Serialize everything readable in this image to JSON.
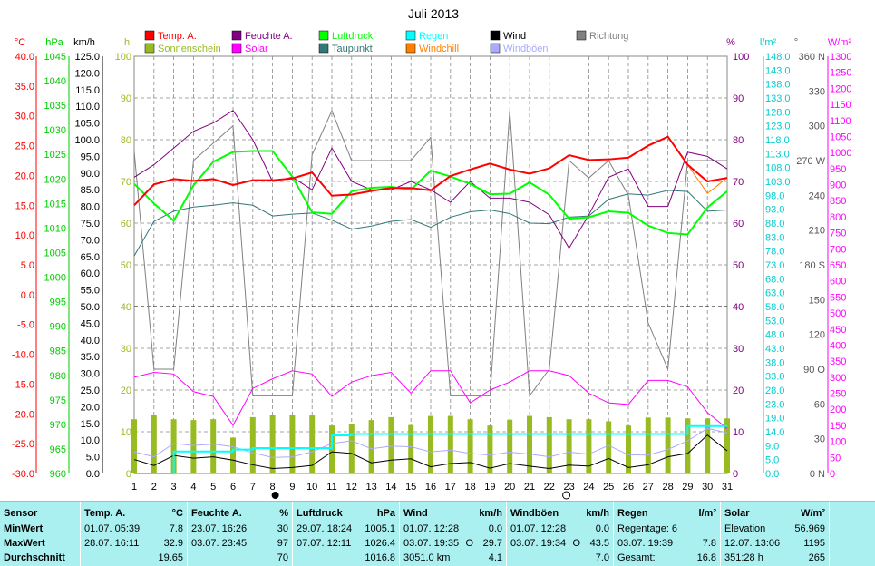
{
  "chart_data": {
    "type": "line",
    "title": "Juli 2013",
    "x": [
      1,
      2,
      3,
      4,
      5,
      6,
      7,
      8,
      9,
      10,
      11,
      12,
      13,
      14,
      15,
      16,
      17,
      18,
      19,
      20,
      21,
      22,
      23,
      24,
      25,
      26,
      27,
      28,
      29,
      30,
      31
    ],
    "axes": {
      "temp": {
        "unit": "°C",
        "range": [
          -30,
          40
        ],
        "ticks": [
          "40.0",
          "35.0",
          "30.0",
          "25.0",
          "20.0",
          "15.0",
          "10.0",
          "5.0",
          "0.0",
          "-5.0",
          "-10.0",
          "-15.0",
          "-20.0",
          "-25.0",
          "-30.0"
        ]
      },
      "pressure": {
        "unit": "hPa",
        "range": [
          960,
          1045
        ],
        "ticks": [
          "1045",
          "1040",
          "1035",
          "1030",
          "1025",
          "1020",
          "1015",
          "1010",
          "1005",
          "1000",
          "995",
          "990",
          "985",
          "980",
          "975",
          "970",
          "965",
          "960"
        ]
      },
      "wind": {
        "unit": "km/h",
        "range": [
          0,
          125
        ],
        "ticks": [
          "125.0",
          "120.0",
          "115.0",
          "110.0",
          "105.0",
          "100.0",
          "95.0",
          "90.0",
          "85.0",
          "80.0",
          "75.0",
          "70.0",
          "65.0",
          "60.0",
          "55.0",
          "50.0",
          "45.0",
          "40.0",
          "35.0",
          "30.0",
          "25.0",
          "20.0",
          "15.0",
          "10.0",
          "5.0",
          "0.0"
        ]
      },
      "sun": {
        "unit": "h",
        "range": [
          0,
          100
        ],
        "ticks": [
          "100",
          "90",
          "80",
          "70",
          "60",
          "50",
          "40",
          "30",
          "20",
          "10",
          "0"
        ]
      },
      "humidity": {
        "unit": "%",
        "range": [
          0,
          100
        ],
        "ticks": [
          "100",
          "90",
          "80",
          "70",
          "60",
          "50",
          "40",
          "30",
          "20",
          "10",
          "0"
        ]
      },
      "rain": {
        "unit": "l/m²",
        "range": [
          0,
          148
        ],
        "ticks": [
          "148.0",
          "143.0",
          "138.0",
          "133.0",
          "128.0",
          "123.0",
          "118.0",
          "113.0",
          "108.0",
          "103.0",
          "98.0",
          "93.0",
          "88.0",
          "83.0",
          "78.0",
          "73.0",
          "68.0",
          "63.0",
          "58.0",
          "53.0",
          "48.0",
          "43.0",
          "38.0",
          "33.0",
          "28.0",
          "23.0",
          "19.0",
          "14.0",
          "9.0",
          "5.0",
          "0.0"
        ]
      },
      "direction": {
        "unit": "°",
        "range": [
          0,
          360
        ],
        "ticks": [
          "360 N",
          "330",
          "300",
          "270 W",
          "240",
          "210",
          "180 S",
          "150",
          "120",
          "90 O",
          "60",
          "30",
          "0 N"
        ]
      },
      "solar": {
        "unit": "W/m²",
        "range": [
          0,
          1300
        ],
        "ticks": [
          "1300",
          "1250",
          "1200",
          "1150",
          "1100",
          "1050",
          "1000",
          "950",
          "900",
          "850",
          "800",
          "750",
          "700",
          "650",
          "600",
          "550",
          "500",
          "450",
          "400",
          "350",
          "300",
          "250",
          "200",
          "150",
          "100",
          "50",
          "0"
        ]
      }
    },
    "legend": [
      {
        "name": "Temp. A.",
        "color": "#ff0000"
      },
      {
        "name": "Feuchte A.",
        "color": "#800080"
      },
      {
        "name": "Luftdruck",
        "color": "#00ff00"
      },
      {
        "name": "Regen",
        "color": "#00ffff"
      },
      {
        "name": "Wind",
        "color": "#000000"
      },
      {
        "name": "Richtung",
        "color": "#808080"
      },
      {
        "name": "Sonnenschein",
        "color": "#99bb22"
      },
      {
        "name": "Solar",
        "color": "#ff00ff"
      },
      {
        "name": "Taupunkt",
        "color": "#337777"
      },
      {
        "name": "Windchill",
        "color": "#ff8000"
      },
      {
        "name": "Windböen",
        "color": "#aaaaff"
      }
    ],
    "series": [
      {
        "name": "Temp. A.",
        "axis": "temp",
        "color": "#ff0000",
        "width": 2,
        "values": [
          15.0,
          18.5,
          19.4,
          19.1,
          19.4,
          18.4,
          19.2,
          19.2,
          19.5,
          20.5,
          16.6,
          16.8,
          17.4,
          17.9,
          17.9,
          17.5,
          19.9,
          21.0,
          22.0,
          21.0,
          20.3,
          21.2,
          23.4,
          22.6,
          22.7,
          23.0,
          25.0,
          26.5,
          21.8,
          19.0,
          19.6
        ]
      },
      {
        "name": "Windchill",
        "axis": "temp",
        "color": "#ff8000",
        "width": 1,
        "values": [
          15.0,
          18.5,
          19.4,
          19.1,
          19.4,
          18.4,
          19.2,
          19.2,
          19.5,
          20.5,
          16.6,
          16.8,
          17.4,
          17.9,
          17.9,
          17.5,
          19.9,
          21.0,
          22.0,
          21.0,
          20.3,
          21.2,
          23.4,
          22.6,
          22.7,
          23.0,
          25.0,
          26.5,
          21.8,
          17.0,
          19.6
        ]
      },
      {
        "name": "Taupunkt",
        "axis": "temp",
        "color": "#337777",
        "width": 1,
        "values": [
          6.5,
          12.3,
          14.0,
          14.7,
          15.0,
          15.4,
          15.0,
          13.2,
          13.5,
          13.7,
          12.5,
          11.0,
          11.5,
          12.3,
          12.6,
          11.3,
          13.0,
          13.9,
          14.2,
          13.6,
          12.0,
          11.9,
          13.0,
          13.2,
          16.0,
          16.9,
          16.7,
          17.5,
          17.3,
          14.0,
          14.2
        ]
      },
      {
        "name": "Luftdruck",
        "axis": "pressure",
        "color": "#00ff00",
        "width": 2,
        "values": [
          1019.0,
          1015.0,
          1011.5,
          1018.7,
          1023.5,
          1025.5,
          1025.7,
          1025.7,
          1020.5,
          1013.2,
          1012.9,
          1017.5,
          1018.2,
          1018.4,
          1017.8,
          1021.7,
          1020.5,
          1019.0,
          1016.9,
          1017.0,
          1019.3,
          1016.8,
          1011.9,
          1012.2,
          1013.4,
          1013.1,
          1010.5,
          1009.0,
          1008.7,
          1014.2,
          1017.5
        ]
      },
      {
        "name": "Feuchte A.",
        "axis": "humidity",
        "color": "#800080",
        "width": 1,
        "values": [
          71.0,
          74.0,
          78.0,
          82.0,
          84.0,
          87.0,
          80.0,
          70.0,
          71.0,
          68.0,
          78.0,
          70.0,
          68.0,
          68.0,
          70.0,
          68.0,
          65.0,
          70.0,
          66.0,
          66.0,
          65.0,
          62.0,
          54.0,
          62.0,
          71.0,
          73.0,
          64.0,
          64.0,
          77.0,
          76.0,
          73.0
        ]
      },
      {
        "name": "Richtung",
        "axis": "direction",
        "color": "#808080",
        "width": 1,
        "values": [
          278.0,
          90.0,
          90.0,
          270.0,
          285.0,
          300.0,
          67.0,
          67.0,
          67.0,
          275.0,
          313.0,
          270.0,
          270.0,
          270.0,
          270.0,
          290.0,
          67.0,
          67.0,
          67.0,
          313.0,
          67.0,
          90.0,
          270.0,
          255.0,
          270.0,
          240.0,
          130.0,
          90.0,
          270.0,
          270.0,
          270.0
        ]
      },
      {
        "name": "Solar",
        "axis": "solar",
        "color": "#ff00ff",
        "width": 1,
        "values": [
          300.0,
          315.0,
          310.0,
          255.0,
          240.0,
          150.0,
          265.0,
          295.0,
          320.0,
          310.0,
          240.0,
          285.0,
          305.0,
          315.0,
          250.0,
          320.0,
          320.0,
          220.0,
          260.0,
          285.0,
          320.0,
          320.0,
          305.0,
          250.0,
          220.0,
          215.0,
          290.0,
          290.0,
          270.0,
          190.0,
          140.0
        ]
      },
      {
        "name": "Wind",
        "axis": "wind",
        "color": "#000000",
        "width": 1,
        "values": [
          4.2,
          2.4,
          5.4,
          4.6,
          5.0,
          4.0,
          2.6,
          1.5,
          1.8,
          2.4,
          6.5,
          6.0,
          3.2,
          4.0,
          4.4,
          2.0,
          3.0,
          3.3,
          1.6,
          3.0,
          2.2,
          1.5,
          2.5,
          2.2,
          4.5,
          1.8,
          2.6,
          5.0,
          6.0,
          11.5,
          6.8
        ]
      },
      {
        "name": "Windböen",
        "axis": "wind",
        "color": "#aaaaff",
        "width": 1,
        "values": [
          6.5,
          5.0,
          9.0,
          8.4,
          8.8,
          8.0,
          6.2,
          4.8,
          5.0,
          6.5,
          9.0,
          9.8,
          7.4,
          8.2,
          8.0,
          6.5,
          7.0,
          6.0,
          5.5,
          6.4,
          5.8,
          5.0,
          6.4,
          5.8,
          8.4,
          5.6,
          5.5,
          7.2,
          9.8,
          13.5,
          12.2
        ]
      },
      {
        "name": "Regen",
        "axis": "rain",
        "color": "#00ffff",
        "width": 2,
        "step": true,
        "values": [
          0.0,
          0.0,
          7.8,
          7.8,
          7.8,
          8.5,
          9.0,
          9.0,
          9.0,
          9.0,
          13.5,
          14.0,
          14.0,
          14.0,
          14.0,
          14.0,
          14.0,
          14.0,
          14.0,
          14.0,
          14.0,
          14.0,
          14.0,
          14.0,
          14.0,
          14.0,
          14.0,
          14.0,
          16.8,
          16.8,
          16.8
        ]
      }
    ],
    "bars": {
      "name": "Sonnenschein",
      "axis": "sun",
      "color": "#99bb22",
      "values": [
        13.0,
        14.0,
        13.0,
        12.8,
        13.0,
        8.6,
        13.5,
        14.0,
        14.0,
        13.9,
        11.5,
        11.8,
        12.8,
        13.5,
        11.6,
        13.8,
        13.8,
        13.0,
        11.5,
        12.9,
        13.8,
        13.5,
        13.0,
        13.0,
        12.5,
        11.5,
        13.4,
        13.4,
        13.2,
        13.2,
        13.2
      ]
    },
    "markers": {
      "full_moon": 8,
      "new_moon": 23
    }
  },
  "stats": {
    "headers": [
      "Sensor",
      "Temp. A.",
      "°C",
      "Feuchte A.",
      "%",
      "Luftdruck",
      "hPa",
      "Wind",
      "km/h",
      "Windböen",
      "km/h",
      "Regen",
      "l/m²",
      "Solar",
      "W/m²"
    ],
    "row_labels": [
      "MinWert",
      "MaxWert",
      "Durchschnitt"
    ],
    "temp": {
      "min_time": "01.07.  05:39",
      "min": "7.8",
      "max_time": "28.07.  16:11",
      "max": "32.9",
      "avg": "19.65"
    },
    "humidity": {
      "min_time": "23.07.  16:26",
      "min": "30",
      "max_time": "03.07.  23:45",
      "max": "97",
      "avg": "70"
    },
    "pressure": {
      "min_time": "29.07.  18:24",
      "min": "1005.1",
      "max_time": "07.07.  12:11",
      "max": "1026.4",
      "avg": "1016.8"
    },
    "wind": {
      "min_time": "01.07.  12:28",
      "min": "0.0",
      "max_time": "03.07.  19:35",
      "max_dir": "O",
      "max": "29.7",
      "distance": "3051.0 km",
      "avg": "4.1"
    },
    "gust": {
      "min_time": "01.07.  12:28",
      "min": "0.0",
      "max_time": "03.07.  19:34",
      "max_dir": "O",
      "max": "43.5",
      "avg": "7.0"
    },
    "rain": {
      "days_label": "Regentage: 6",
      "max_time": "03.07.  19:39",
      "max": "7.8",
      "total_label": "Gesamt:",
      "total": "16.8"
    },
    "solar": {
      "elevation_label": "Elevation",
      "elevation": "56.969",
      "max_time": "12.07.  13:06",
      "max": "1195",
      "duration": "351:28 h",
      "avg": "265"
    }
  }
}
